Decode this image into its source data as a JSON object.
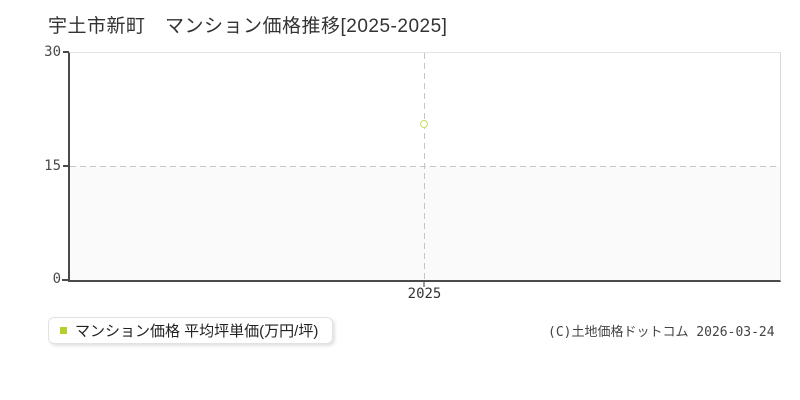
{
  "title": "宇土市新町　マンション価格推移[2025-2025]",
  "axes": {
    "y_ticks": [
      "30",
      "15",
      "0"
    ],
    "x_ticks": [
      "2025"
    ]
  },
  "legend": {
    "label": "マンション価格 平均坪単価(万円/坪)",
    "marker_color": "#b3d02c"
  },
  "footer": {
    "copyright": "(C)土地価格ドットコム 2026-03-24"
  },
  "colors": {
    "axis": "#4a4a4a",
    "plot_border_light": "#dddddd",
    "gridline": "#c6c6c6",
    "point_stroke": "#c9dc62",
    "lower_band": "#fafafa",
    "title_text": "#333333"
  },
  "chart_data": {
    "type": "scatter",
    "title": "宇土市新町　マンション価格推移[2025-2025]",
    "x": [
      2025
    ],
    "series": [
      {
        "name": "マンション価格 平均坪単価(万円/坪)",
        "values": [
          20.5
        ]
      }
    ],
    "xlabel": "",
    "ylabel": "",
    "ylim": [
      0,
      30
    ],
    "yticks": [
      0,
      15,
      30
    ],
    "xticks": [
      2025
    ],
    "grid": "dashed crosshair at x=2025 and y=15",
    "legend_position": "bottom-left",
    "marker": "open-circle"
  }
}
